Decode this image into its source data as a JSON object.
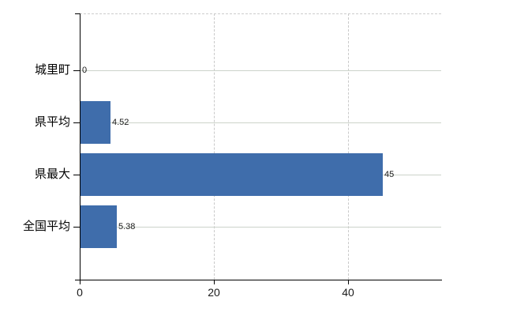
{
  "chart_data": {
    "type": "bar",
    "orientation": "horizontal",
    "title": "",
    "xlabel": "",
    "ylabel": "",
    "categories": [
      "城里町",
      "県平均",
      "県最大",
      "全国平均"
    ],
    "values": [
      0,
      4.52,
      45,
      5.38
    ],
    "value_labels": [
      "0",
      "4.52",
      "45",
      "5.38"
    ],
    "x_ticks": [
      0,
      20,
      40
    ],
    "x_tick_labels": [
      "0",
      "20",
      "40"
    ],
    "xlim": [
      0,
      54
    ],
    "grid": true,
    "grid_horizontal_style": "solid",
    "grid_vertical_style": "dashed",
    "legend_position": "none",
    "colors": {
      "bar": "#3f6dab",
      "axis": "#000000",
      "grid_horizontal": "#ccd3ca",
      "grid_vertical": "#c9c9c9",
      "plot_top_border": "#cccccc",
      "background": "#ffffff"
    }
  }
}
